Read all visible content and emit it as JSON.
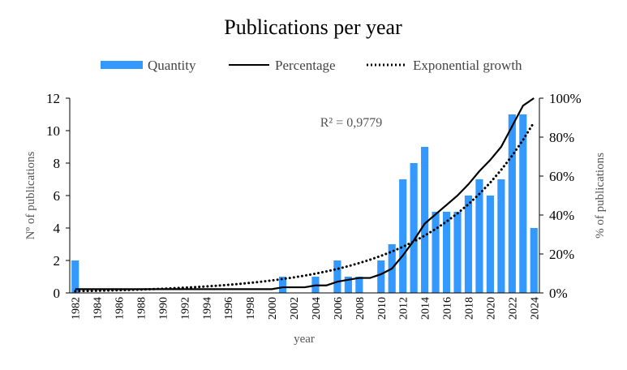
{
  "chart_data": {
    "type": "bar",
    "title": "Publications  per year",
    "xlabel": "year",
    "ylabel": "Nº of publications",
    "y2label": "% of publications",
    "ylim": [
      0,
      12
    ],
    "y2lim": [
      0,
      100
    ],
    "yticks": [
      "0",
      "2",
      "4",
      "6",
      "8",
      "10",
      "12"
    ],
    "y2ticks": [
      "0%",
      "20%",
      "40%",
      "60%",
      "80%",
      "100%"
    ],
    "x": [
      1982,
      1983,
      1984,
      1985,
      1986,
      1987,
      1988,
      1989,
      1990,
      1991,
      1992,
      1993,
      1994,
      1995,
      1996,
      1997,
      1998,
      1999,
      2000,
      2001,
      2002,
      2003,
      2004,
      2005,
      2006,
      2007,
      2008,
      2009,
      2010,
      2011,
      2012,
      2013,
      2014,
      2015,
      2016,
      2017,
      2018,
      2019,
      2020,
      2021,
      2022,
      2023,
      2024
    ],
    "series": [
      {
        "name": "Quantity",
        "type": "bar",
        "axis": "left",
        "color": "#3399FF",
        "values": [
          2,
          0,
          0,
          0,
          0,
          0,
          0,
          0,
          0,
          0,
          0,
          0,
          0,
          0,
          0,
          0,
          0,
          0,
          0,
          1,
          0,
          0,
          1,
          0,
          2,
          1,
          1,
          0,
          2,
          3,
          7,
          8,
          9,
          5,
          5,
          5,
          6,
          7,
          6,
          7,
          11,
          11,
          4
        ]
      },
      {
        "name": "Percentage",
        "type": "line",
        "axis": "right",
        "color": "#000000",
        "cumulative_of": "Quantity"
      },
      {
        "name": "Exponential growth",
        "type": "trend-exponential",
        "axis": "right",
        "color": "#000000",
        "a_percent_at_1982": 0.9,
        "b_per_year": 0.109
      }
    ],
    "annotation": "R² = 0,9779",
    "legend": "top",
    "grid": false
  }
}
